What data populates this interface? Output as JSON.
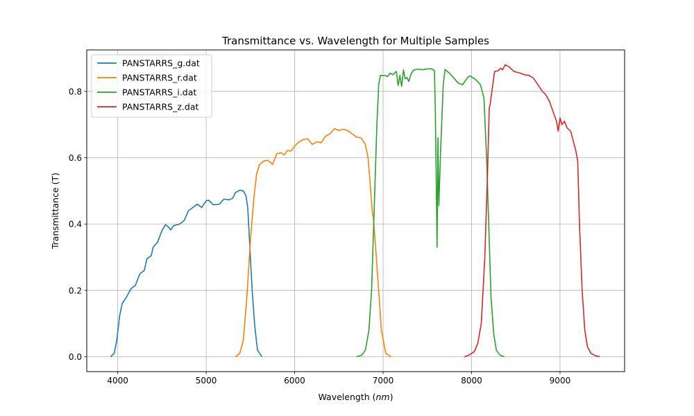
{
  "chart_data": {
    "type": "line",
    "title": "Transmittance vs. Wavelength for Multiple Samples",
    "xlabel": "Wavelength (nm)",
    "ylabel": "Transmittance (T)",
    "xlim": [
      3650,
      9730
    ],
    "ylim": [
      -0.045,
      0.925
    ],
    "xticks": [
      4000,
      5000,
      6000,
      7000,
      8000,
      9000
    ],
    "yticks": [
      0.0,
      0.2,
      0.4,
      0.6,
      0.8
    ],
    "grid": true,
    "legend_position": "top-left",
    "series": [
      {
        "name": "PANSTARRS_g.dat",
        "color": "#1f77b4",
        "points": [
          [
            3920,
            0.0
          ],
          [
            3960,
            0.01
          ],
          [
            3990,
            0.05
          ],
          [
            4020,
            0.12
          ],
          [
            4050,
            0.16
          ],
          [
            4100,
            0.18
          ],
          [
            4150,
            0.205
          ],
          [
            4200,
            0.215
          ],
          [
            4250,
            0.25
          ],
          [
            4300,
            0.26
          ],
          [
            4330,
            0.295
          ],
          [
            4380,
            0.305
          ],
          [
            4400,
            0.33
          ],
          [
            4450,
            0.345
          ],
          [
            4500,
            0.38
          ],
          [
            4540,
            0.398
          ],
          [
            4570,
            0.392
          ],
          [
            4600,
            0.382
          ],
          [
            4630,
            0.395
          ],
          [
            4700,
            0.4
          ],
          [
            4750,
            0.41
          ],
          [
            4800,
            0.44
          ],
          [
            4850,
            0.45
          ],
          [
            4900,
            0.46
          ],
          [
            4950,
            0.45
          ],
          [
            5000,
            0.47
          ],
          [
            5030,
            0.472
          ],
          [
            5080,
            0.458
          ],
          [
            5150,
            0.46
          ],
          [
            5200,
            0.475
          ],
          [
            5260,
            0.473
          ],
          [
            5300,
            0.478
          ],
          [
            5330,
            0.495
          ],
          [
            5380,
            0.502
          ],
          [
            5420,
            0.5
          ],
          [
            5450,
            0.485
          ],
          [
            5470,
            0.45
          ],
          [
            5490,
            0.35
          ],
          [
            5520,
            0.2
          ],
          [
            5550,
            0.09
          ],
          [
            5580,
            0.02
          ],
          [
            5630,
            0.0
          ]
        ]
      },
      {
        "name": "PANSTARRS_r.dat",
        "color": "#ff7f0e",
        "points": [
          [
            5330,
            0.0
          ],
          [
            5380,
            0.01
          ],
          [
            5420,
            0.05
          ],
          [
            5460,
            0.18
          ],
          [
            5500,
            0.35
          ],
          [
            5540,
            0.48
          ],
          [
            5570,
            0.55
          ],
          [
            5600,
            0.578
          ],
          [
            5650,
            0.59
          ],
          [
            5700,
            0.592
          ],
          [
            5750,
            0.58
          ],
          [
            5800,
            0.612
          ],
          [
            5850,
            0.615
          ],
          [
            5880,
            0.608
          ],
          [
            5920,
            0.622
          ],
          [
            5960,
            0.62
          ],
          [
            6000,
            0.635
          ],
          [
            6050,
            0.648
          ],
          [
            6100,
            0.655
          ],
          [
            6150,
            0.657
          ],
          [
            6200,
            0.64
          ],
          [
            6250,
            0.648
          ],
          [
            6300,
            0.645
          ],
          [
            6350,
            0.665
          ],
          [
            6400,
            0.672
          ],
          [
            6450,
            0.688
          ],
          [
            6500,
            0.682
          ],
          [
            6550,
            0.686
          ],
          [
            6600,
            0.682
          ],
          [
            6650,
            0.672
          ],
          [
            6700,
            0.662
          ],
          [
            6750,
            0.66
          ],
          [
            6800,
            0.64
          ],
          [
            6830,
            0.6
          ],
          [
            6860,
            0.5
          ],
          [
            6880,
            0.43
          ],
          [
            6890,
            0.42
          ],
          [
            6910,
            0.35
          ],
          [
            6950,
            0.2
          ],
          [
            6980,
            0.08
          ],
          [
            7030,
            0.01
          ],
          [
            7090,
            0.0
          ]
        ]
      },
      {
        "name": "PANSTARRS_i.dat",
        "color": "#2ca02c",
        "points": [
          [
            6700,
            0.0
          ],
          [
            6760,
            0.005
          ],
          [
            6800,
            0.02
          ],
          [
            6840,
            0.08
          ],
          [
            6870,
            0.2
          ],
          [
            6900,
            0.45
          ],
          [
            6930,
            0.7
          ],
          [
            6950,
            0.82
          ],
          [
            6970,
            0.848
          ],
          [
            7020,
            0.848
          ],
          [
            7050,
            0.845
          ],
          [
            7080,
            0.855
          ],
          [
            7110,
            0.85
          ],
          [
            7150,
            0.86
          ],
          [
            7170,
            0.818
          ],
          [
            7190,
            0.848
          ],
          [
            7210,
            0.815
          ],
          [
            7230,
            0.865
          ],
          [
            7250,
            0.838
          ],
          [
            7270,
            0.842
          ],
          [
            7290,
            0.83
          ],
          [
            7320,
            0.855
          ],
          [
            7350,
            0.865
          ],
          [
            7400,
            0.867
          ],
          [
            7450,
            0.865
          ],
          [
            7500,
            0.868
          ],
          [
            7550,
            0.868
          ],
          [
            7580,
            0.863
          ],
          [
            7590,
            0.75
          ],
          [
            7600,
            0.55
          ],
          [
            7610,
            0.33
          ],
          [
            7620,
            0.66
          ],
          [
            7630,
            0.455
          ],
          [
            7650,
            0.62
          ],
          [
            7680,
            0.82
          ],
          [
            7700,
            0.866
          ],
          [
            7750,
            0.855
          ],
          [
            7800,
            0.84
          ],
          [
            7850,
            0.825
          ],
          [
            7900,
            0.82
          ],
          [
            7950,
            0.84
          ],
          [
            7980,
            0.847
          ],
          [
            8050,
            0.835
          ],
          [
            8100,
            0.82
          ],
          [
            8140,
            0.78
          ],
          [
            8170,
            0.6
          ],
          [
            8200,
            0.35
          ],
          [
            8220,
            0.18
          ],
          [
            8250,
            0.07
          ],
          [
            8280,
            0.02
          ],
          [
            8320,
            0.005
          ],
          [
            8370,
            0.0
          ]
        ]
      },
      {
        "name": "PANSTARRS_z.dat",
        "color": "#d62728",
        "points": [
          [
            7920,
            0.0
          ],
          [
            7970,
            0.005
          ],
          [
            8030,
            0.015
          ],
          [
            8070,
            0.04
          ],
          [
            8110,
            0.1
          ],
          [
            8150,
            0.3
          ],
          [
            8180,
            0.55
          ],
          [
            8200,
            0.75
          ],
          [
            8210,
            0.76
          ],
          [
            8230,
            0.8
          ],
          [
            8260,
            0.86
          ],
          [
            8300,
            0.862
          ],
          [
            8330,
            0.87
          ],
          [
            8350,
            0.865
          ],
          [
            8380,
            0.88
          ],
          [
            8420,
            0.875
          ],
          [
            8480,
            0.86
          ],
          [
            8550,
            0.855
          ],
          [
            8600,
            0.85
          ],
          [
            8650,
            0.848
          ],
          [
            8700,
            0.84
          ],
          [
            8750,
            0.82
          ],
          [
            8800,
            0.8
          ],
          [
            8840,
            0.79
          ],
          [
            8880,
            0.77
          ],
          [
            8920,
            0.74
          ],
          [
            8960,
            0.71
          ],
          [
            8980,
            0.68
          ],
          [
            9000,
            0.72
          ],
          [
            9020,
            0.7
          ],
          [
            9050,
            0.71
          ],
          [
            9080,
            0.69
          ],
          [
            9120,
            0.68
          ],
          [
            9160,
            0.64
          ],
          [
            9180,
            0.62
          ],
          [
            9200,
            0.59
          ],
          [
            9220,
            0.4
          ],
          [
            9250,
            0.2
          ],
          [
            9280,
            0.08
          ],
          [
            9310,
            0.03
          ],
          [
            9350,
            0.01
          ],
          [
            9400,
            0.003
          ],
          [
            9450,
            0.0
          ]
        ]
      }
    ]
  }
}
